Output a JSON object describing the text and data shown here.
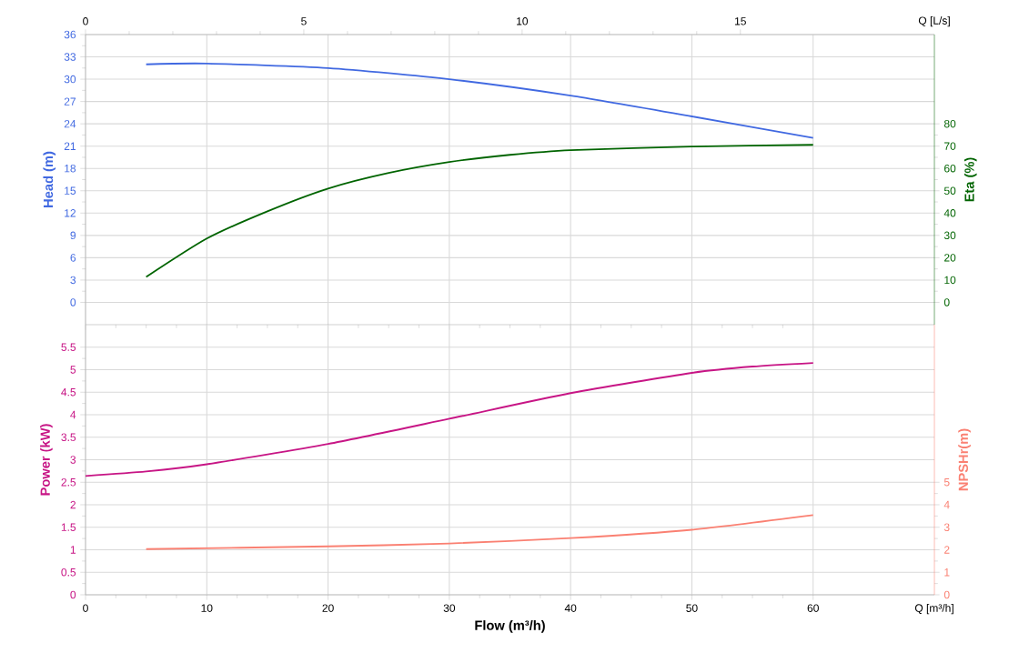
{
  "chart_data": [
    {
      "type": "line",
      "xlim": [
        0,
        70
      ],
      "xticks": [
        0,
        10,
        20,
        30,
        40,
        50,
        60
      ],
      "x2lim": [
        0,
        19.444
      ],
      "x2ticks": [
        0,
        5,
        10,
        15
      ],
      "x2label": "Q [L/s]",
      "ylabel": "Head (m)",
      "ylim": [
        -3,
        36
      ],
      "yticks": [
        0,
        3,
        6,
        9,
        12,
        15,
        18,
        21,
        24,
        27,
        30,
        33,
        36
      ],
      "y2label": "Eta (%)",
      "y2lim": [
        -10,
        120
      ],
      "y2ticks": [
        0,
        10,
        20,
        30,
        40,
        50,
        60,
        70,
        80
      ],
      "grid": true,
      "tick_labels": "y",
      "line_style": "solid",
      "series": [
        {
          "color": "#4169e1",
          "x": [
            5,
            10,
            20,
            30,
            40,
            50,
            60
          ],
          "values": [
            32.0,
            32.1,
            31.5,
            30.0,
            27.8,
            25.0,
            22.1
          ]
        },
        {
          "color": "#006400",
          "axis": "y2",
          "x": [
            5,
            10,
            15,
            20,
            25,
            30,
            35,
            40,
            50,
            60
          ],
          "values": [
            11.4,
            28.6,
            40.8,
            51,
            58,
            62.9,
            66.1,
            68.2,
            69.8,
            70.6
          ]
        }
      ]
    },
    {
      "type": "line",
      "xlabel": "Flow (m³/h)",
      "xlim": [
        0,
        70
      ],
      "xticks": [
        0,
        10,
        20,
        30,
        40,
        50,
        60
      ],
      "ylabel": "Power (kW)",
      "ylim": [
        0,
        6
      ],
      "yticks": [
        0,
        0.5,
        1,
        1.5,
        2,
        2.5,
        3,
        3.5,
        4,
        4.5,
        5,
        5.5
      ],
      "y2label": "NPSHr(m)",
      "y2lim": [
        0,
        12
      ],
      "y2ticks": [
        0,
        1,
        2,
        3,
        4,
        5
      ],
      "grid": true,
      "line_style": "solid",
      "annotations": [
        "Q [m³/h]"
      ],
      "series": [
        {
          "color": "#c71585",
          "x": [
            0,
            5,
            10,
            20,
            30,
            40,
            50,
            55,
            60
          ],
          "values": [
            2.64,
            2.74,
            2.9,
            3.35,
            3.91,
            4.48,
            4.93,
            5.07,
            5.15
          ]
        },
        {
          "color": "#fa8072",
          "axis": "y2",
          "x": [
            5,
            20,
            30,
            40,
            50,
            60
          ],
          "values": [
            2.03,
            2.15,
            2.28,
            2.52,
            2.89,
            3.54
          ]
        }
      ]
    }
  ]
}
